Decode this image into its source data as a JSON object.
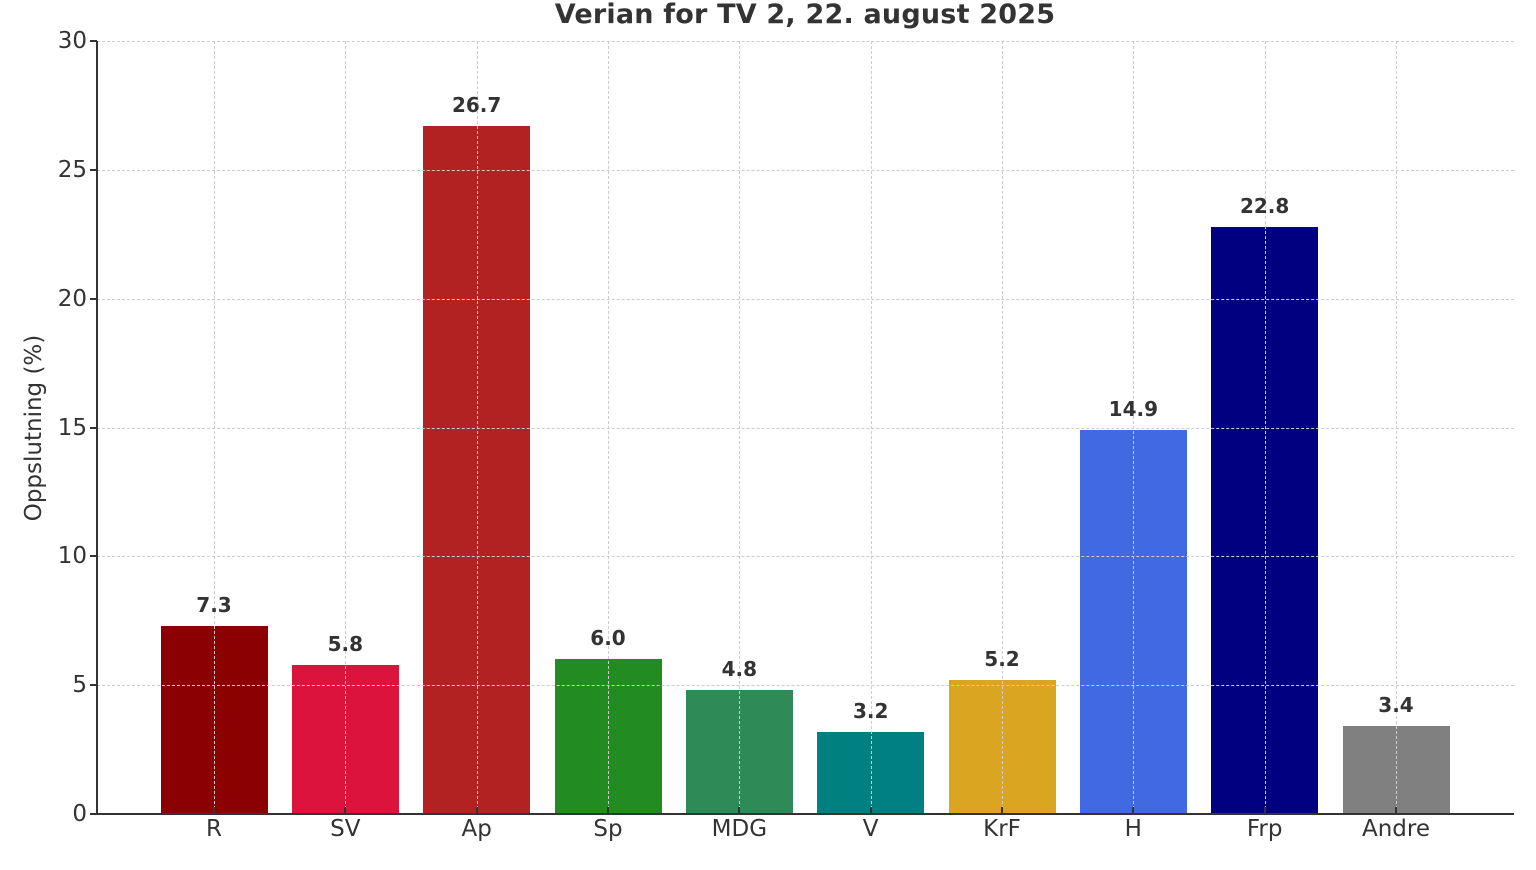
{
  "chart_data": {
    "type": "bar",
    "title": "Verian for TV 2, 22. august 2025",
    "xlabel": "",
    "ylabel": "Oppslutning (%)",
    "ylim": [
      0,
      30
    ],
    "yticks": [
      "0",
      "5",
      "10",
      "15",
      "20",
      "25",
      "30"
    ],
    "grid": true,
    "legend": null,
    "categories": [
      "R",
      "SV",
      "Ap",
      "Sp",
      "MDG",
      "V",
      "KrF",
      "H",
      "Frp",
      "Andre"
    ],
    "values": [
      7.3,
      5.8,
      26.7,
      6.0,
      4.8,
      3.2,
      5.2,
      14.9,
      22.8,
      3.4
    ],
    "value_labels": [
      "7.3",
      "5.8",
      "26.7",
      "6.0",
      "4.8",
      "3.2",
      "5.2",
      "14.9",
      "22.8",
      "3.4"
    ],
    "colors": [
      "#8b0000",
      "#dc143c",
      "#b22222",
      "#228b22",
      "#2e8b57",
      "#008080",
      "#daa520",
      "#4169e1",
      "#000080",
      "#808080"
    ]
  }
}
